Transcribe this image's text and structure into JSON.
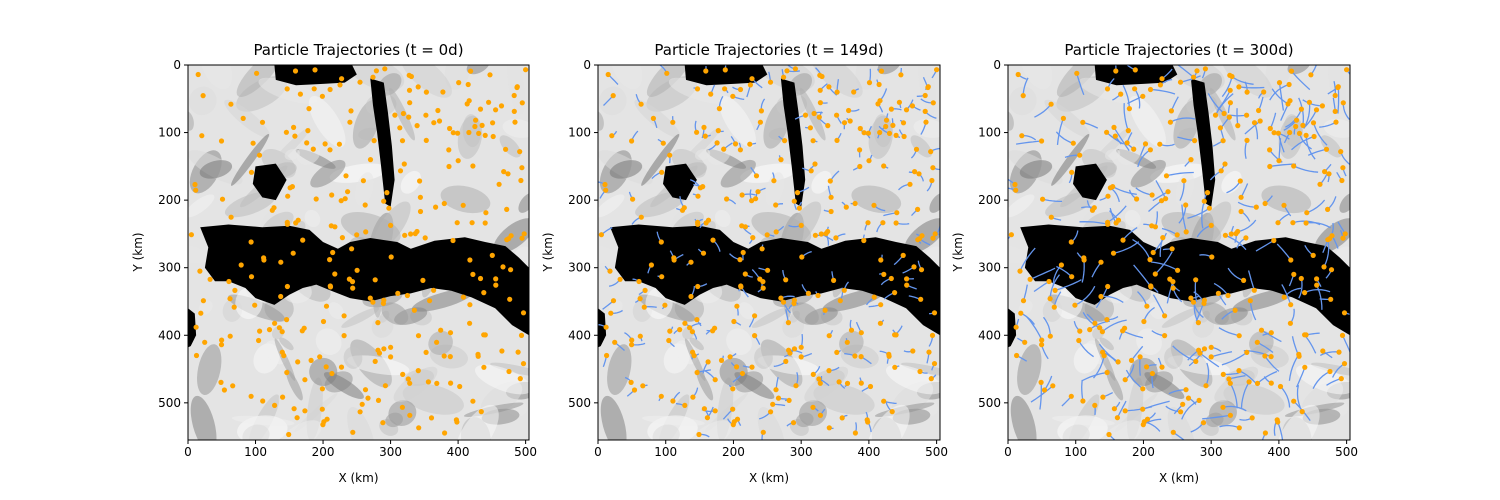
{
  "chart_data": [
    {
      "type": "scatter",
      "title": "Particle Trajectories (t = 0d)",
      "xlabel": "X (km)",
      "ylabel": "Y (km)",
      "xlim": [
        0,
        505
      ],
      "ylim": [
        555,
        0
      ],
      "xticks": [
        "0",
        "100",
        "200",
        "300",
        "400",
        "500"
      ],
      "yticks": [
        "0",
        "100",
        "200",
        "300",
        "400",
        "500"
      ],
      "background": "grayscale field with black land mask",
      "particle_color": "#ffa500",
      "trajectory_color": "#6495ed",
      "particle_count": 300,
      "trajectories": false
    },
    {
      "type": "scatter",
      "title": "Particle Trajectories (t = 149d)",
      "xlabel": "X (km)",
      "ylabel": "Y (km)",
      "xlim": [
        0,
        505
      ],
      "ylim": [
        555,
        0
      ],
      "xticks": [
        "0",
        "100",
        "200",
        "300",
        "400",
        "500"
      ],
      "yticks": [
        "0",
        "100",
        "200",
        "300",
        "400",
        "500"
      ],
      "background": "grayscale field with black land mask",
      "particle_color": "#ffa500",
      "trajectory_color": "#6495ed",
      "particle_count": 300,
      "trajectories": true,
      "trajectory_length": 0.5
    },
    {
      "type": "scatter",
      "title": "Particle Trajectories (t = 300d)",
      "xlabel": "X (km)",
      "ylabel": "Y (km)",
      "xlim": [
        0,
        505
      ],
      "ylim": [
        555,
        0
      ],
      "xticks": [
        "0",
        "100",
        "200",
        "300",
        "400",
        "500"
      ],
      "yticks": [
        "0",
        "100",
        "200",
        "300",
        "400",
        "500"
      ],
      "background": "grayscale field with black land mask",
      "particle_color": "#ffa500",
      "trajectory_color": "#6495ed",
      "particle_count": 300,
      "trajectories": true,
      "trajectory_length": 1.0
    }
  ]
}
